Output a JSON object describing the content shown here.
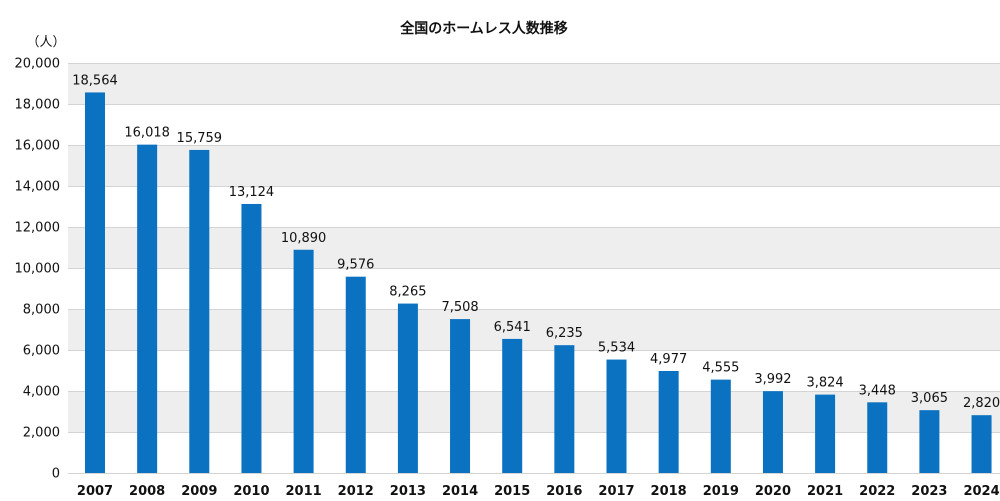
{
  "chart_data": {
    "type": "bar",
    "title": "全国のホームレス人数推移",
    "unit_label": "（人）",
    "categories": [
      "2007",
      "2008",
      "2009",
      "2010",
      "2011",
      "2012",
      "2013",
      "2014",
      "2015",
      "2016",
      "2017",
      "2018",
      "2019",
      "2020",
      "2021",
      "2022",
      "2023",
      "2024"
    ],
    "values": [
      18564,
      16018,
      15759,
      13124,
      10890,
      9576,
      8265,
      7508,
      6541,
      6235,
      5534,
      4977,
      4555,
      3992,
      3824,
      3448,
      3065,
      2820
    ],
    "value_labels": [
      "18,564",
      "16,018",
      "15,759",
      "13,124",
      "10,890",
      "9,576",
      "8,265",
      "7,508",
      "6,541",
      "6,235",
      "5,534",
      "4,977",
      "4,555",
      "3,992",
      "3,824",
      "3,448",
      "3,065",
      "2,820"
    ],
    "yticks": [
      "0",
      "2,000",
      "4,000",
      "6,000",
      "8,000",
      "10,000",
      "12,000",
      "14,000",
      "16,000",
      "18,000",
      "20,000"
    ],
    "ytick_values": [
      0,
      2000,
      4000,
      6000,
      8000,
      10000,
      12000,
      14000,
      16000,
      18000,
      20000
    ],
    "ylim": [
      0,
      20000
    ],
    "grid": true,
    "legend": "none",
    "colors": {
      "bar": "#0a72c0",
      "band": "#eeeeee",
      "gridline": "#d4d4d4"
    }
  }
}
